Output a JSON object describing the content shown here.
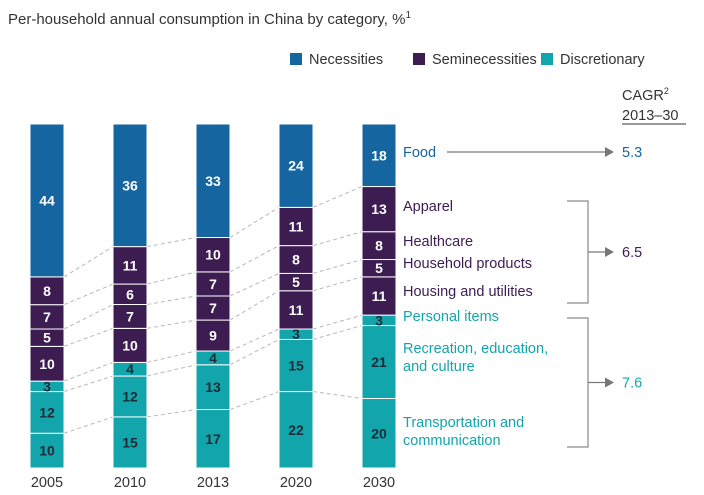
{
  "chart_data": {
    "type": "bar",
    "stacked": true,
    "title": "Per-household annual consumption in China by category, %",
    "title_footnote": "1",
    "categories": [
      "2005",
      "2010",
      "2013",
      "2020",
      "2030"
    ],
    "groups": [
      {
        "name": "Necessities",
        "color": "#1566a0"
      },
      {
        "name": "Seminecessities",
        "color": "#3d1c52"
      },
      {
        "name": "Discretionary",
        "color": "#13a5ac"
      }
    ],
    "series": [
      {
        "name": "Transportation and communication",
        "group": "Discretionary",
        "values": [
          10,
          15,
          17,
          22,
          20
        ]
      },
      {
        "name": "Recreation, education, and culture",
        "group": "Discretionary",
        "values": [
          12,
          12,
          13,
          15,
          21
        ]
      },
      {
        "name": "Personal items",
        "group": "Discretionary",
        "values": [
          3,
          4,
          4,
          3,
          3
        ]
      },
      {
        "name": "Housing and utilities",
        "group": "Seminecessities",
        "values": [
          10,
          10,
          9,
          11,
          11
        ]
      },
      {
        "name": "Household products",
        "group": "Seminecessities",
        "values": [
          5,
          7,
          7,
          5,
          5
        ]
      },
      {
        "name": "Healthcare",
        "group": "Seminecessities",
        "values": [
          7,
          6,
          7,
          8,
          8
        ]
      },
      {
        "name": "Apparel",
        "group": "Seminecessities",
        "values": [
          8,
          11,
          10,
          11,
          13
        ]
      },
      {
        "name": "Food",
        "group": "Necessities",
        "values": [
          44,
          36,
          33,
          24,
          18
        ]
      }
    ],
    "category_labels": [
      {
        "lines": [
          "Food"
        ]
      },
      {
        "lines": [
          "Apparel"
        ]
      },
      {
        "lines": [
          "Healthcare"
        ]
      },
      {
        "lines": [
          "Household products"
        ]
      },
      {
        "lines": [
          "Housing and utilities"
        ]
      },
      {
        "lines": [
          "Personal items"
        ]
      },
      {
        "lines": [
          "Recreation, education,",
          "and culture"
        ]
      },
      {
        "lines": [
          "Transportation and",
          "communication"
        ]
      }
    ],
    "cagr_header": [
      "CAGR",
      "2013–30"
    ],
    "cagr_footnote": "2",
    "cagr": [
      {
        "group": "Necessities",
        "value": "5.3"
      },
      {
        "group": "Seminecessities",
        "value": "6.5"
      },
      {
        "group": "Discretionary",
        "value": "7.6"
      }
    ]
  }
}
